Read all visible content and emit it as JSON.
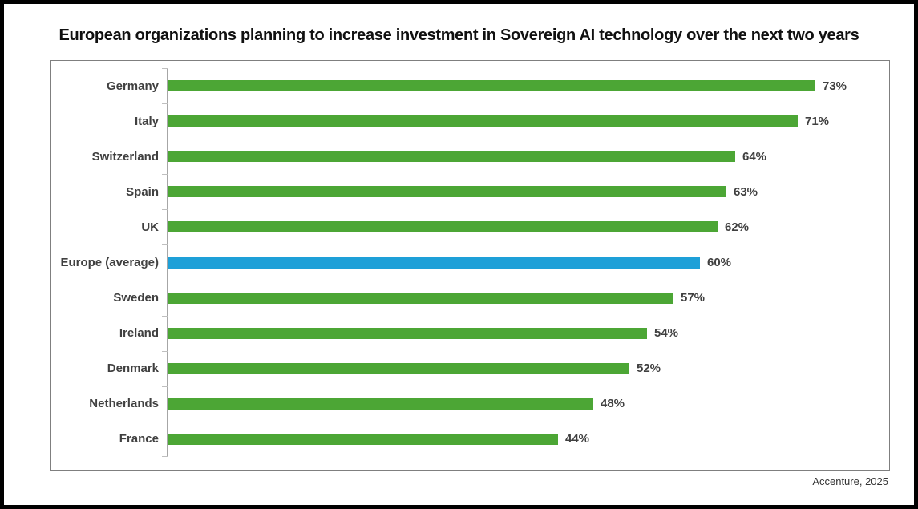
{
  "title": "European organizations planning to increase investment in Sovereign AI technology over the next two years",
  "source": "Accenture, 2025",
  "colors": {
    "bar_green": "#4CA635",
    "bar_highlight_blue": "#1EA0D8",
    "label_text": "#404040",
    "axis_line": "#A6A6A6",
    "box_border": "#7F7F7F",
    "frame_border": "#000000"
  },
  "chart_data": {
    "type": "bar",
    "orientation": "horizontal",
    "title": "European organizations planning to increase investment in Sovereign AI technology over the next two years",
    "categories": [
      "Germany",
      "Italy",
      "Switzerland",
      "Spain",
      "UK",
      "Europe (average)",
      "Sweden",
      "Ireland",
      "Denmark",
      "Netherlands",
      "France"
    ],
    "values": [
      73,
      71,
      64,
      63,
      62,
      60,
      57,
      54,
      52,
      48,
      44
    ],
    "value_labels": [
      "73%",
      "71%",
      "64%",
      "63%",
      "62%",
      "60%",
      "57%",
      "54%",
      "52%",
      "48%",
      "44%"
    ],
    "highlight_category": "Europe (average)",
    "highlight_note": "Europe (average) bar is blue; all other bars are green",
    "xlabel": "",
    "ylabel": "",
    "xlim": [
      0,
      81
    ],
    "grid": false,
    "legend": false,
    "annotation": "Accenture, 2025"
  }
}
